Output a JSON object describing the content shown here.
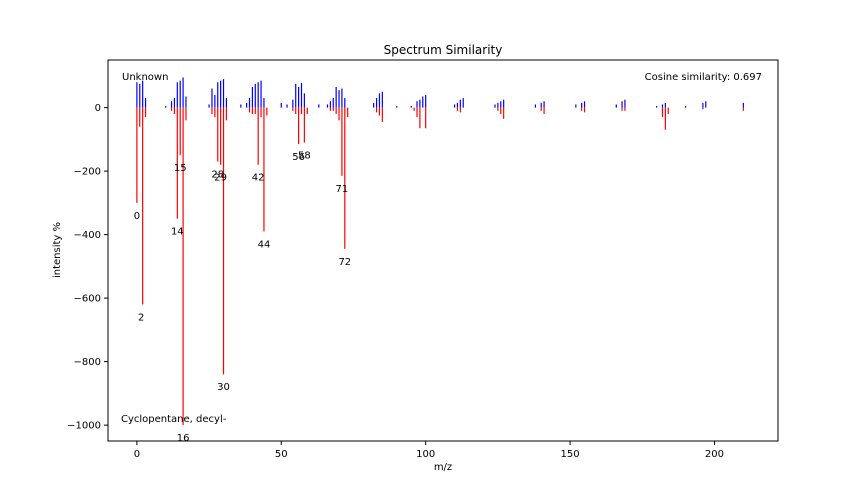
{
  "chart_data": {
    "type": "bar",
    "title": "Spectrum Similarity",
    "xlabel": "m/z",
    "ylabel": "intensity %",
    "xlim": [
      -10,
      222
    ],
    "ylim": [
      -1050,
      150
    ],
    "xticks": [
      0,
      50,
      100,
      150,
      200
    ],
    "yticks": [
      -1000,
      -800,
      -600,
      -400,
      -200,
      0
    ],
    "xtick_labels": [
      "0",
      "50",
      "100",
      "150",
      "200"
    ],
    "ytick_labels": [
      "−1000",
      "−800",
      "−600",
      "−400",
      "−200",
      "0"
    ],
    "grid": false,
    "annotations": {
      "top_left": "Unknown",
      "top_right": "Cosine similarity: 0.697",
      "bottom_left": "Cyclopentane, decyl-"
    },
    "series": [
      {
        "name": "Unknown",
        "color": "#0000ff",
        "points": [
          [
            0,
            80
          ],
          [
            1,
            75
          ],
          [
            2,
            85
          ],
          [
            3,
            30
          ],
          [
            10,
            5
          ],
          [
            12,
            20
          ],
          [
            13,
            30
          ],
          [
            14,
            80
          ],
          [
            15,
            85
          ],
          [
            16,
            95
          ],
          [
            17,
            35
          ],
          [
            25,
            10
          ],
          [
            26,
            60
          ],
          [
            27,
            40
          ],
          [
            28,
            80
          ],
          [
            29,
            85
          ],
          [
            30,
            90
          ],
          [
            31,
            30
          ],
          [
            36,
            10
          ],
          [
            38,
            15
          ],
          [
            39,
            30
          ],
          [
            40,
            65
          ],
          [
            41,
            75
          ],
          [
            42,
            80
          ],
          [
            43,
            85
          ],
          [
            44,
            30
          ],
          [
            50,
            15
          ],
          [
            52,
            10
          ],
          [
            54,
            25
          ],
          [
            55,
            75
          ],
          [
            56,
            65
          ],
          [
            57,
            78
          ],
          [
            58,
            45
          ],
          [
            63,
            10
          ],
          [
            66,
            10
          ],
          [
            67,
            20
          ],
          [
            68,
            30
          ],
          [
            69,
            65
          ],
          [
            70,
            55
          ],
          [
            71,
            60
          ],
          [
            72,
            30
          ],
          [
            82,
            15
          ],
          [
            83,
            30
          ],
          [
            84,
            45
          ],
          [
            85,
            50
          ],
          [
            90,
            5
          ],
          [
            95,
            5
          ],
          [
            97,
            20
          ],
          [
            98,
            25
          ],
          [
            99,
            35
          ],
          [
            100,
            40
          ],
          [
            110,
            10
          ],
          [
            111,
            15
          ],
          [
            112,
            25
          ],
          [
            113,
            30
          ],
          [
            124,
            10
          ],
          [
            125,
            15
          ],
          [
            126,
            20
          ],
          [
            127,
            25
          ],
          [
            138,
            10
          ],
          [
            140,
            15
          ],
          [
            141,
            20
          ],
          [
            152,
            10
          ],
          [
            154,
            15
          ],
          [
            155,
            20
          ],
          [
            166,
            10
          ],
          [
            168,
            20
          ],
          [
            169,
            25
          ],
          [
            180,
            5
          ],
          [
            182,
            10
          ],
          [
            183,
            15
          ],
          [
            190,
            5
          ],
          [
            196,
            15
          ],
          [
            197,
            20
          ],
          [
            210,
            15
          ]
        ]
      },
      {
        "name": "Cyclopentane, decyl-",
        "color": "#ff0000",
        "points": [
          [
            0,
            -300
          ],
          [
            1,
            -60
          ],
          [
            2,
            -620
          ],
          [
            3,
            -30
          ],
          [
            12,
            -10
          ],
          [
            13,
            -20
          ],
          [
            14,
            -350
          ],
          [
            15,
            -150
          ],
          [
            16,
            -1000
          ],
          [
            17,
            -40
          ],
          [
            26,
            -20
          ],
          [
            27,
            -30
          ],
          [
            28,
            -170
          ],
          [
            29,
            -180
          ],
          [
            30,
            -840
          ],
          [
            31,
            -40
          ],
          [
            39,
            -15
          ],
          [
            40,
            -20
          ],
          [
            41,
            -20
          ],
          [
            42,
            -180
          ],
          [
            43,
            -30
          ],
          [
            44,
            -390
          ],
          [
            45,
            -25
          ],
          [
            54,
            -10
          ],
          [
            55,
            -20
          ],
          [
            56,
            -115
          ],
          [
            57,
            -20
          ],
          [
            58,
            -110
          ],
          [
            59,
            -20
          ],
          [
            67,
            -10
          ],
          [
            68,
            -10
          ],
          [
            69,
            -20
          ],
          [
            70,
            -40
          ],
          [
            71,
            -215
          ],
          [
            72,
            -445
          ],
          [
            73,
            -30
          ],
          [
            83,
            -15
          ],
          [
            84,
            -25
          ],
          [
            85,
            -45
          ],
          [
            96,
            -10
          ],
          [
            97,
            -30
          ],
          [
            98,
            -65
          ],
          [
            100,
            -65
          ],
          [
            111,
            -10
          ],
          [
            112,
            -15
          ],
          [
            125,
            -10
          ],
          [
            126,
            -20
          ],
          [
            127,
            -35
          ],
          [
            140,
            -10
          ],
          [
            141,
            -20
          ],
          [
            154,
            -10
          ],
          [
            155,
            -15
          ],
          [
            168,
            -10
          ],
          [
            169,
            -10
          ],
          [
            182,
            -30
          ],
          [
            183,
            -70
          ],
          [
            184,
            -20
          ],
          [
            196,
            -5
          ],
          [
            210,
            -10
          ]
        ]
      }
    ],
    "peak_labels": [
      {
        "text": "0",
        "x": 0,
        "y": -350
      },
      {
        "text": "2",
        "x": 1.5,
        "y": -670
      },
      {
        "text": "14",
        "x": 14,
        "y": -400
      },
      {
        "text": "15",
        "x": 15,
        "y": -200
      },
      {
        "text": "16",
        "x": 16,
        "y": -1050
      },
      {
        "text": "28",
        "x": 28,
        "y": -220
      },
      {
        "text": "29",
        "x": 29,
        "y": -230
      },
      {
        "text": "30",
        "x": 30,
        "y": -890
      },
      {
        "text": "42",
        "x": 42,
        "y": -230
      },
      {
        "text": "44",
        "x": 44,
        "y": -440
      },
      {
        "text": "56",
        "x": 56,
        "y": -165
      },
      {
        "text": "58",
        "x": 58,
        "y": -160
      },
      {
        "text": "71",
        "x": 71,
        "y": -265
      },
      {
        "text": "72",
        "x": 72,
        "y": -495
      }
    ]
  }
}
